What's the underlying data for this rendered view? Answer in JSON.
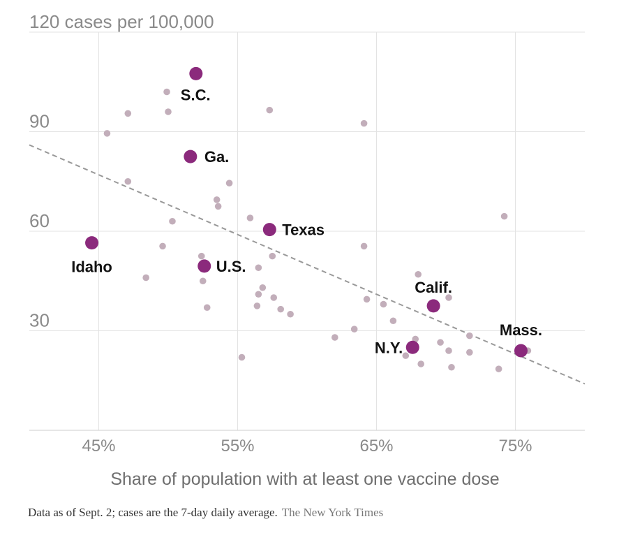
{
  "chart_data": {
    "type": "scatter",
    "title": "",
    "xlabel": "Share of population with at least one vaccine dose",
    "ylabel": "cases per 100,000",
    "xlim": [
      40,
      80
    ],
    "ylim": [
      0,
      120
    ],
    "x_ticks": [
      {
        "value": 45,
        "label": "45%"
      },
      {
        "value": 55,
        "label": "55%"
      },
      {
        "value": 65,
        "label": "65%"
      },
      {
        "value": 75,
        "label": "75%"
      }
    ],
    "y_ticks": [
      {
        "value": 30,
        "label": "30"
      },
      {
        "value": 60,
        "label": "60"
      },
      {
        "value": 90,
        "label": "90"
      },
      {
        "value": 120,
        "label": "120 cases per 100,000"
      }
    ],
    "grid": true,
    "trend_line": {
      "x": [
        40,
        80
      ],
      "y": [
        86,
        14
      ]
    },
    "highlighted": [
      {
        "label": "S.C.",
        "x": 52.0,
        "y": 107.5
      },
      {
        "label": "Ga.",
        "x": 51.6,
        "y": 82.5
      },
      {
        "label": "Texas",
        "x": 57.3,
        "y": 60.5
      },
      {
        "label": "Idaho",
        "x": 44.5,
        "y": 56.5
      },
      {
        "label": "U.S.",
        "x": 52.6,
        "y": 49.5
      },
      {
        "label": "Calif.",
        "x": 69.1,
        "y": 37.5
      },
      {
        "label": "N.Y.",
        "x": 67.6,
        "y": 25.0
      },
      {
        "label": "Mass.",
        "x": 75.4,
        "y": 24.0
      }
    ],
    "points": [
      {
        "x": 45.6,
        "y": 89.5
      },
      {
        "x": 47.1,
        "y": 95.5
      },
      {
        "x": 49.9,
        "y": 102.0
      },
      {
        "x": 50.0,
        "y": 96.0
      },
      {
        "x": 57.3,
        "y": 96.5
      },
      {
        "x": 64.1,
        "y": 92.5
      },
      {
        "x": 47.1,
        "y": 75.0
      },
      {
        "x": 54.4,
        "y": 74.5
      },
      {
        "x": 53.5,
        "y": 69.5
      },
      {
        "x": 53.6,
        "y": 67.5
      },
      {
        "x": 50.3,
        "y": 63.0
      },
      {
        "x": 55.9,
        "y": 64.0
      },
      {
        "x": 74.2,
        "y": 64.5
      },
      {
        "x": 49.6,
        "y": 55.5
      },
      {
        "x": 64.1,
        "y": 55.5
      },
      {
        "x": 52.4,
        "y": 52.5
      },
      {
        "x": 57.5,
        "y": 52.5
      },
      {
        "x": 56.5,
        "y": 49.0
      },
      {
        "x": 48.4,
        "y": 46.0
      },
      {
        "x": 52.5,
        "y": 45.0
      },
      {
        "x": 68.0,
        "y": 47.0
      },
      {
        "x": 56.8,
        "y": 43.0
      },
      {
        "x": 56.5,
        "y": 41.0
      },
      {
        "x": 57.6,
        "y": 40.0
      },
      {
        "x": 64.3,
        "y": 39.5
      },
      {
        "x": 70.2,
        "y": 40.0
      },
      {
        "x": 65.5,
        "y": 38.0
      },
      {
        "x": 52.8,
        "y": 37.0
      },
      {
        "x": 56.4,
        "y": 37.5
      },
      {
        "x": 58.1,
        "y": 36.5
      },
      {
        "x": 58.8,
        "y": 35.0
      },
      {
        "x": 66.2,
        "y": 33.0
      },
      {
        "x": 63.4,
        "y": 30.5
      },
      {
        "x": 62.0,
        "y": 28.0
      },
      {
        "x": 67.8,
        "y": 27.5
      },
      {
        "x": 69.6,
        "y": 26.5
      },
      {
        "x": 71.7,
        "y": 28.5
      },
      {
        "x": 70.2,
        "y": 24.0
      },
      {
        "x": 71.7,
        "y": 23.5
      },
      {
        "x": 75.9,
        "y": 24.0
      },
      {
        "x": 67.1,
        "y": 22.5
      },
      {
        "x": 55.3,
        "y": 22.0
      },
      {
        "x": 68.2,
        "y": 20.0
      },
      {
        "x": 70.4,
        "y": 19.0
      },
      {
        "x": 73.8,
        "y": 18.5
      }
    ],
    "colors": {
      "highlight": "#8b2a7c",
      "point": "#c2aeba",
      "trend": "#999999",
      "grid": "#e3e3e3",
      "axis": "#cccccc"
    }
  },
  "footnote": {
    "text": "Data as of Sept. 2; cases are the 7-day daily average.",
    "credit": "The New York Times"
  }
}
